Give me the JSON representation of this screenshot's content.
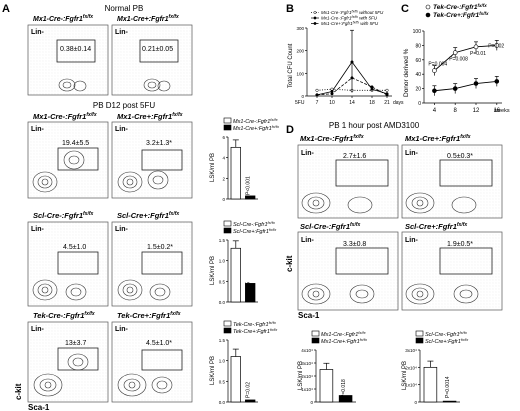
{
  "panel_letters": [
    "A",
    "B",
    "C",
    "D"
  ],
  "panel_a": {
    "header_normal": "Normal PB",
    "header_d12": "PB D12 post 5FU",
    "axis_y": "c-kit",
    "axis_x": "Sca-1",
    "row_normal": [
      {
        "genotype": "Mx1-Cre-:Fgfr1",
        "sup": "fx/fx",
        "lin": "Lin-",
        "value": "0.38±0.14"
      },
      {
        "genotype": "Mx1-Cre+:Fgfr1",
        "sup": "fx/fx",
        "lin": "Lin-",
        "value": "0.21±0.05"
      }
    ],
    "row_mx1": [
      {
        "genotype": "Mx1-Cre-:Fgfr1",
        "sup": "fx/fx",
        "lin": "Lin-",
        "value": "19.4±5.5"
      },
      {
        "genotype": "Mx1-Cre+:Fgfr1",
        "sup": "fx/fx",
        "lin": "Lin-",
        "value": "3.2±1.3*"
      }
    ],
    "row_scl": [
      {
        "genotype": "Scl-Cre-:Fgfr1",
        "sup": "fx/fx",
        "lin": "Lin-",
        "value": "4.5±1.0"
      },
      {
        "genotype": "Scl-Cre+:Fgfr1",
        "sup": "fx/fx",
        "lin": "Lin-",
        "value": "1.5±0.2*"
      }
    ],
    "row_tek": [
      {
        "genotype": "Tek-Cre-:Fgfr1",
        "sup": "fx/fx",
        "lin": "Lin-",
        "value": "13±3.7"
      },
      {
        "genotype": "Tek-Cre+:Fgfr1",
        "sup": "fx/fx",
        "lin": "Lin-",
        "value": "4.5±1.0*"
      }
    ],
    "bars": [
      {
        "ylabel": "LSK/ml PB",
        "legend": [
          "Mx1-Cre-:Fgfr1",
          "Mx1-Cre+:Fgfr1"
        ],
        "legend_sup": "fx/fx",
        "values": [
          5.0,
          0.3
        ],
        "p": "P<0.001",
        "yticks": [
          "0",
          "2",
          "4",
          "6"
        ]
      },
      {
        "ylabel": "LSK/ml PB",
        "legend": [
          "Scl-Cre-:Fgfr1",
          "Scl-Cre+:Fgfr1"
        ],
        "legend_sup": "fx/fx",
        "values": [
          1.3,
          0.45
        ],
        "p": "P<0.05",
        "yticks": [
          "0.0",
          "0.5",
          "1.0",
          "1.5"
        ]
      },
      {
        "ylabel": "LSK/ml PB",
        "legend": [
          "Tek-Cre-:Fgfr1",
          "Tek-Cre+:Fgfr1"
        ],
        "legend_sup": "fx/fx",
        "values": [
          1.1,
          0.05
        ],
        "p": "P=0.02",
        "yticks": [
          "0.0",
          "0.5",
          "1.0",
          "1.5"
        ]
      }
    ]
  },
  "panel_b": {
    "ylabel": "Total CFU Count",
    "xlabel_5fu": "5FU",
    "xlabel_days": "days",
    "x_ticks": [
      7,
      10,
      14,
      18,
      21
    ],
    "y_ticks": [
      0,
      100,
      200,
      300
    ],
    "legend": [
      {
        "label": "Mx1-Cre-:Fgfr1",
        "sup": "fx/fx",
        "suffix": " without 5FU"
      },
      {
        "label": "Mx1-Cre-:Fgfr1",
        "sup": "fx/fx",
        "suffix": " with 5FU"
      },
      {
        "label": "Mx1-Cre+:Fgfr1",
        "sup": "fx/fx",
        "suffix": " with 5FU"
      }
    ]
  },
  "panel_c": {
    "legend": [
      {
        "label": "Tek-Cre-:Fgfr1",
        "sup": "fx/fx"
      },
      {
        "label": "Tek-Cre+:Fgfr1",
        "sup": "fx/fx"
      }
    ],
    "ylabel": "Donor derived %",
    "x_ticks": [
      "4",
      "8",
      "12",
      "16"
    ],
    "x_unit": "weeks",
    "y_ticks": [
      "0",
      "20",
      "40",
      "60",
      "80",
      "100"
    ],
    "pvalues": [
      "P=0.004",
      "P=0.008",
      "P=0.01",
      "P=0.02"
    ]
  },
  "panel_d": {
    "header": "PB 1 hour post AMD3100",
    "axis_y": "c-kit",
    "axis_x": "Sca-1",
    "row_mx1": [
      {
        "genotype": "Mx1-Cre-:Fgfr1",
        "sup": "fx/fx",
        "lin": "Lin-",
        "value": "2.7±1.6"
      },
      {
        "genotype": "Mx1-Cre+:Fgfr1",
        "sup": "fx/fx",
        "lin": "Lin-",
        "value": "0.5±0.3*"
      }
    ],
    "row_scl": [
      {
        "genotype": "Scl-Cre-:Fgfr1",
        "sup": "fx/fx",
        "lin": "Lin-",
        "value": "3.3±0.8"
      },
      {
        "genotype": "Scl-Cre+:Fgfr1",
        "sup": "fx/fx",
        "lin": "Lin-",
        "value": "1.9±0.5*"
      }
    ],
    "bars": [
      {
        "ylabel": "LSK/ml PB",
        "legend": [
          "Mx1-Cre-:Fgfr1",
          "Mx1-Cre+:Fgfr1"
        ],
        "legend_sup": "fx/fx",
        "values": [
          2.5,
          0.5
        ],
        "p": "P=0.018",
        "yticks": [
          "0",
          "1x10⁴",
          "2x10⁴",
          "3x10⁴",
          "4x10⁴"
        ]
      },
      {
        "ylabel": "LSK/ml PB",
        "legend": [
          "Scl-Cre-:Fgfr1",
          "Scl-Cre+:Fgfr1"
        ],
        "legend_sup": "fx/fx",
        "values": [
          2.0,
          0.05
        ],
        "p": "P=0.0014",
        "yticks": [
          "0",
          "1x10⁴",
          "2x10⁴",
          "3x10⁴"
        ]
      }
    ]
  },
  "chart_data": [
    {
      "type": "line",
      "panel": "B",
      "ylabel": "Total CFU Count",
      "x": [
        7,
        10,
        14,
        18,
        21
      ],
      "series": [
        {
          "name": "Mx1-Cre-:Fgfr1 fx/fx without 5FU",
          "values": [
            25,
            30,
            25,
            25,
            25
          ]
        },
        {
          "name": "Mx1-Cre-:Fgfr1 fx/fx with 5FU",
          "values": [
            5,
            20,
            150,
            30,
            10
          ]
        },
        {
          "name": "Mx1-Cre+:Fgfr1 fx/fx with 5FU",
          "values": [
            5,
            10,
            80,
            40,
            5
          ]
        }
      ],
      "ylim": [
        0,
        300
      ]
    },
    {
      "type": "line",
      "panel": "C",
      "ylabel": "Donor derived %",
      "xlabel": "weeks",
      "x": [
        4,
        8,
        12,
        16
      ],
      "series": [
        {
          "name": "Tek-Cre-:Fgfr1 fx/fx",
          "values": [
            45,
            70,
            78,
            80
          ]
        },
        {
          "name": "Tek-Cre+:Fgfr1 fx/fx",
          "values": [
            17,
            20,
            27,
            30
          ]
        }
      ],
      "ylim": [
        0,
        100
      ]
    }
  ]
}
